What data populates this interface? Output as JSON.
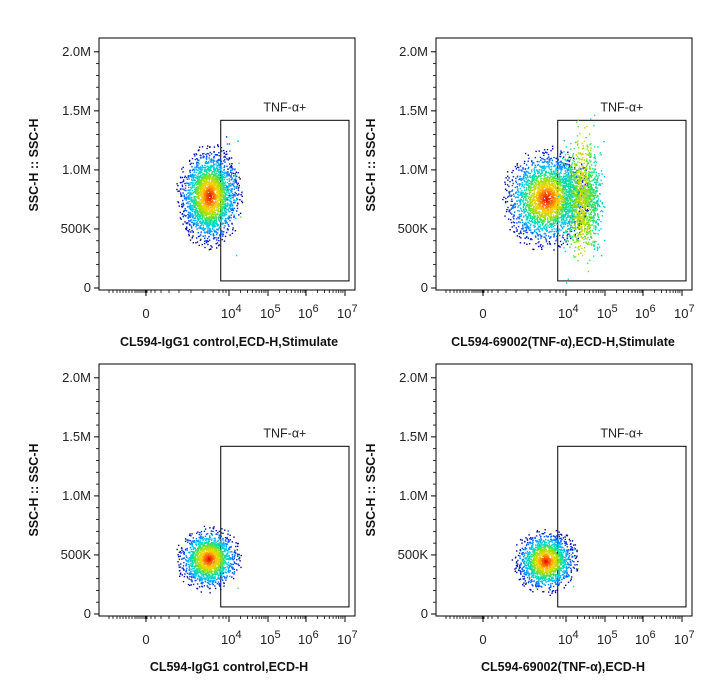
{
  "chart_data": [
    {
      "type": "scatter",
      "subtype": "flow-cytometry-density-dot-plot",
      "xlabel": "CL594-IgG1 control,ECD-H,Stimulate",
      "ylabel": "SSC-H :: SSC-H",
      "x_scale": "biexponential",
      "x_ticks": [
        "0",
        "10^4",
        "10^5",
        "10^6",
        "10^7"
      ],
      "y_ticks": [
        "0",
        "500K",
        "1.0M",
        "1.5M",
        "2.0M"
      ],
      "ylim": [
        0,
        2100000
      ],
      "gate": {
        "label": "TNF-α+",
        "x_min": 4000,
        "y_min": 60000,
        "y_max": 1420000
      },
      "population": {
        "x_center": 1100,
        "y_center": 780000,
        "y_range": [
          420000,
          1250000
        ],
        "events_in_gate": "few"
      }
    },
    {
      "type": "scatter",
      "subtype": "flow-cytometry-density-dot-plot",
      "xlabel": "CL594-69002(TNF-α),ECD-H,Stimulate",
      "ylabel": "SSC-H :: SSC-H",
      "x_scale": "biexponential",
      "x_ticks": [
        "0",
        "10^4",
        "10^5",
        "10^6",
        "10^7"
      ],
      "y_ticks": [
        "0",
        "500K",
        "1.0M",
        "1.5M",
        "2.0M"
      ],
      "ylim": [
        0,
        2100000
      ],
      "gate": {
        "label": "TNF-α+",
        "x_min": 4000,
        "y_min": 60000,
        "y_max": 1420000
      },
      "population": {
        "x_center": 1100,
        "y_center": 760000,
        "y_range": [
          420000,
          1250000
        ],
        "events_in_gate": "many",
        "gate_x_extent": 60000
      }
    },
    {
      "type": "scatter",
      "subtype": "flow-cytometry-density-dot-plot",
      "xlabel": "CL594-IgG1 control,ECD-H",
      "ylabel": "SSC-H :: SSC-H",
      "x_scale": "biexponential",
      "x_ticks": [
        "0",
        "10^4",
        "10^5",
        "10^6",
        "10^7"
      ],
      "y_ticks": [
        "0",
        "500K",
        "1.0M",
        "1.5M",
        "2.0M"
      ],
      "ylim": [
        0,
        2100000
      ],
      "gate": {
        "label": "TNF-α+",
        "x_min": 4000,
        "y_min": 60000,
        "y_max": 1420000
      },
      "population": {
        "x_center": 1000,
        "y_center": 470000,
        "y_range": [
          250000,
          780000
        ],
        "events_in_gate": "very few"
      }
    },
    {
      "type": "scatter",
      "subtype": "flow-cytometry-density-dot-plot",
      "xlabel": "CL594-69002(TNF-α),ECD-H",
      "ylabel": "SSC-H :: SSC-H",
      "x_scale": "biexponential",
      "x_ticks": [
        "0",
        "10^4",
        "10^5",
        "10^6",
        "10^7"
      ],
      "y_ticks": [
        "0",
        "500K",
        "1.0M",
        "1.5M",
        "2.0M"
      ],
      "ylim": [
        0,
        2100000
      ],
      "gate": {
        "label": "TNF-α+",
        "x_min": 4000,
        "y_min": 60000,
        "y_max": 1420000
      },
      "population": {
        "x_center": 1000,
        "y_center": 450000,
        "y_range": [
          250000,
          780000
        ],
        "events_in_gate": "very few"
      }
    }
  ],
  "colors": {
    "frame": "#000000",
    "gate": "#000000",
    "density_scale": [
      "#0000a0",
      "#0050ff",
      "#00c0ff",
      "#00e0a0",
      "#a0e000",
      "#ffd000",
      "#ff6000",
      "#e00000"
    ]
  }
}
